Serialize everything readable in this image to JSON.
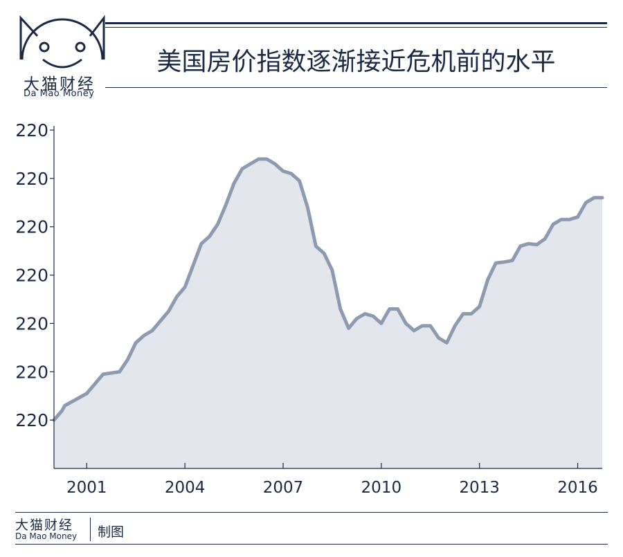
{
  "header": {
    "brand_cn": "大猫财经",
    "brand_en": "Da  Mao Money",
    "title": "美国房价指数逐渐接近危机前的水平"
  },
  "footer": {
    "brand_cn": "大猫财经",
    "brand_en": "Da  Mao Money",
    "tag": "制图"
  },
  "colors": {
    "navy": "#1a2a44",
    "line": "#8e9ab0",
    "fill": "#e3e6ed"
  },
  "chart_data": {
    "type": "area",
    "title": "美国房价指数逐渐接近危机前的水平",
    "xlabel": "",
    "ylabel": "",
    "xlim": [
      2000.0,
      2016.75
    ],
    "ylim": [
      0,
      7
    ],
    "y_ticks": [
      {
        "value": 7,
        "label": "220"
      },
      {
        "value": 6,
        "label": "220"
      },
      {
        "value": 5,
        "label": "220"
      },
      {
        "value": 4,
        "label": "220"
      },
      {
        "value": 3,
        "label": "220"
      },
      {
        "value": 2,
        "label": "220"
      },
      {
        "value": 1,
        "label": "220"
      }
    ],
    "x_ticks": [
      {
        "value": 2001,
        "label": "2001"
      },
      {
        "value": 2004,
        "label": "2004"
      },
      {
        "value": 2007,
        "label": "2007"
      },
      {
        "value": 2010,
        "label": "2010"
      },
      {
        "value": 2013,
        "label": "2013"
      },
      {
        "value": 2016,
        "label": "2016"
      }
    ],
    "grid": false,
    "series": [
      {
        "x": [
          2000.0,
          2000.25,
          2000.33,
          2000.6,
          2001.0,
          2001.25,
          2001.5,
          2002.0,
          2002.25,
          2002.5,
          2002.75,
          2003.0,
          2003.25,
          2003.5,
          2003.75,
          2004.0,
          2004.25,
          2004.5,
          2004.75,
          2005.0,
          2005.25,
          2005.5,
          2005.75,
          2006.0,
          2006.25,
          2006.5,
          2006.75,
          2007.0,
          2007.25,
          2007.5,
          2007.75,
          2008.0,
          2008.25,
          2008.5,
          2008.75,
          2009.0,
          2009.25,
          2009.5,
          2009.75,
          2010.0,
          2010.25,
          2010.5,
          2010.75,
          2011.0,
          2011.25,
          2011.5,
          2011.75,
          2012.0,
          2012.25,
          2012.5,
          2012.75,
          2013.0,
          2013.25,
          2013.5,
          2013.75,
          2014.0,
          2014.25,
          2014.5,
          2014.75,
          2015.0,
          2015.25,
          2015.5,
          2015.75,
          2016.0,
          2016.25,
          2016.5,
          2016.75
        ],
        "values": [
          1.0,
          1.2,
          1.3,
          1.4,
          1.55,
          1.75,
          1.95,
          2.0,
          2.25,
          2.6,
          2.75,
          2.85,
          3.05,
          3.25,
          3.55,
          3.75,
          4.2,
          4.65,
          4.8,
          5.05,
          5.45,
          5.9,
          6.2,
          6.3,
          6.4,
          6.4,
          6.3,
          6.15,
          6.1,
          5.95,
          5.4,
          4.6,
          4.45,
          4.1,
          3.3,
          2.9,
          3.1,
          3.2,
          3.15,
          3.0,
          3.3,
          3.3,
          3.0,
          2.85,
          2.95,
          2.95,
          2.7,
          2.6,
          2.95,
          3.2,
          3.2,
          3.35,
          3.9,
          4.25,
          4.27,
          4.3,
          4.6,
          4.65,
          4.63,
          4.75,
          5.05,
          5.15,
          5.15,
          5.2,
          5.5,
          5.6,
          5.6
        ]
      }
    ]
  }
}
